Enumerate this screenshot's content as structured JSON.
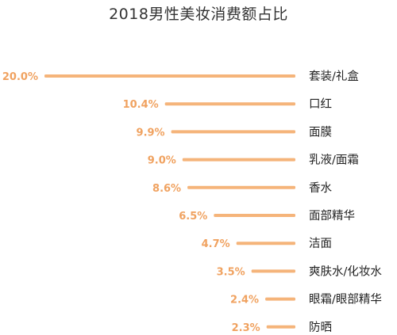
{
  "chart_data": {
    "type": "bar",
    "orientation": "horizontal",
    "title": "2018男性美妆消费额占比",
    "categories": [
      "套装/礼盒",
      "口红",
      "面膜",
      "乳液/面霜",
      "香水",
      "面部精华",
      "洁面",
      "爽肤水/化妆水",
      "眼霜/眼部精华",
      "防晒"
    ],
    "values": [
      20.0,
      10.4,
      9.9,
      9.0,
      8.6,
      6.5,
      4.7,
      3.5,
      2.4,
      2.3
    ],
    "value_labels": [
      "20.0%",
      "10.4%",
      "9.9%",
      "9.0%",
      "8.6%",
      "6.5%",
      "4.7%",
      "3.5%",
      "2.4%",
      "2.3%"
    ],
    "unit": "%",
    "xlim": [
      0,
      20
    ],
    "grid": false,
    "legend": "none",
    "bar_color": "#f5b47a",
    "label_color": "#f0a260"
  }
}
